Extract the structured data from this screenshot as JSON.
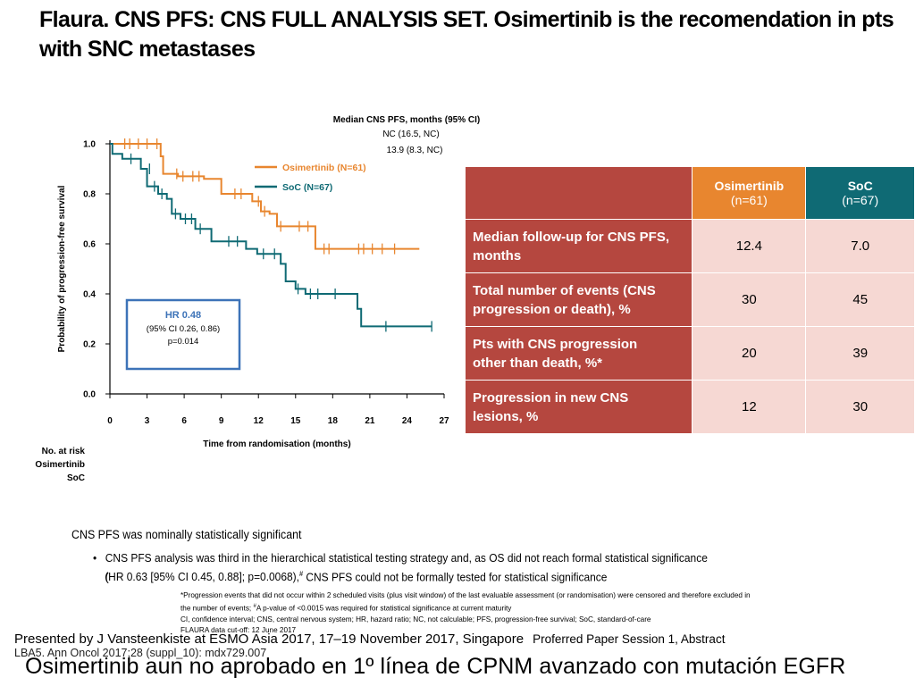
{
  "title": "Flaura. CNS PFS: CNS FULL ANALYSIS SET. Osimertinib is the recomendation in pts with SNC metastases",
  "chart_data": {
    "type": "line",
    "subtype": "kaplan-meier",
    "xlabel": "Time from randomisation (months)",
    "ylabel": "Probability of progression-free survival",
    "xlim": [
      0,
      27
    ],
    "ylim": [
      0,
      1.0
    ],
    "x_ticks": [
      "0",
      "3",
      "6",
      "9",
      "12",
      "15",
      "18",
      "21",
      "24",
      "27"
    ],
    "y_ticks": [
      "1.0",
      "0.8",
      "0.6",
      "0.4",
      "0.2",
      "0.0"
    ],
    "median_header": "Median CNS PFS, months (95% CI)",
    "median_values": [
      "NC (16.5, NC)",
      "13.9 (8.3, NC)"
    ],
    "series": [
      {
        "name": "Osimertinib (N=61)",
        "color": "#e8862f",
        "steps": [
          [
            0,
            1.0
          ],
          [
            4.1,
            0.95
          ],
          [
            4.3,
            0.88
          ],
          [
            5.5,
            0.87
          ],
          [
            7.6,
            0.86
          ],
          [
            9.0,
            0.8
          ],
          [
            11.5,
            0.77
          ],
          [
            12.2,
            0.73
          ],
          [
            12.9,
            0.72
          ],
          [
            13.5,
            0.67
          ],
          [
            16.6,
            0.58
          ],
          [
            25.0,
            0.58
          ]
        ],
        "censors": [
          [
            1.2,
            1.0
          ],
          [
            1.6,
            1.0
          ],
          [
            2.3,
            1.0
          ],
          [
            3.0,
            1.0
          ],
          [
            3.8,
            1.0
          ],
          [
            5.4,
            0.88
          ],
          [
            5.9,
            0.87
          ],
          [
            6.7,
            0.87
          ],
          [
            7.2,
            0.87
          ],
          [
            10.1,
            0.8
          ],
          [
            10.6,
            0.8
          ],
          [
            12.0,
            0.77
          ],
          [
            12.5,
            0.73
          ],
          [
            13.8,
            0.67
          ],
          [
            15.3,
            0.67
          ],
          [
            16.0,
            0.67
          ],
          [
            17.3,
            0.58
          ],
          [
            17.7,
            0.58
          ],
          [
            20.1,
            0.58
          ],
          [
            20.5,
            0.58
          ],
          [
            21.2,
            0.58
          ],
          [
            22.0,
            0.58
          ],
          [
            23.0,
            0.58
          ]
        ]
      },
      {
        "name": "SoC (N=67)",
        "color": "#0f6a74",
        "steps": [
          [
            0,
            1.0
          ],
          [
            0.2,
            0.96
          ],
          [
            1.0,
            0.94
          ],
          [
            2.5,
            0.9
          ],
          [
            3.0,
            0.83
          ],
          [
            3.9,
            0.8
          ],
          [
            4.6,
            0.78
          ],
          [
            5.0,
            0.72
          ],
          [
            5.7,
            0.7
          ],
          [
            6.9,
            0.66
          ],
          [
            8.2,
            0.61
          ],
          [
            11.0,
            0.58
          ],
          [
            11.9,
            0.56
          ],
          [
            13.8,
            0.52
          ],
          [
            14.2,
            0.45
          ],
          [
            15.0,
            0.42
          ],
          [
            15.8,
            0.4
          ],
          [
            19.8,
            0.4
          ],
          [
            20.0,
            0.34
          ],
          [
            20.3,
            0.27
          ],
          [
            26.0,
            0.27
          ]
        ],
        "censors": [
          [
            1.7,
            0.94
          ],
          [
            3.2,
            0.9
          ],
          [
            3.6,
            0.83
          ],
          [
            4.2,
            0.8
          ],
          [
            5.3,
            0.72
          ],
          [
            6.1,
            0.7
          ],
          [
            6.6,
            0.7
          ],
          [
            7.3,
            0.66
          ],
          [
            9.6,
            0.61
          ],
          [
            10.3,
            0.61
          ],
          [
            12.4,
            0.56
          ],
          [
            13.3,
            0.56
          ],
          [
            15.2,
            0.42
          ],
          [
            16.2,
            0.4
          ],
          [
            16.8,
            0.4
          ],
          [
            18.2,
            0.4
          ],
          [
            22.3,
            0.27
          ],
          [
            26.0,
            0.27
          ]
        ]
      }
    ],
    "hr_box": {
      "hr": "HR 0.48",
      "ci": "(95% CI 0.26, 0.86)",
      "p": "p=0.014"
    },
    "risk_header": "No. at risk",
    "risk_rows": [
      "Osimertinib",
      "SoC"
    ]
  },
  "table": {
    "headers": [
      {
        "line1": "Osimertinib",
        "line2": "(n=61)"
      },
      {
        "line1": "SoC",
        "line2": "(n=67)"
      }
    ],
    "rows": [
      {
        "label1": "Median follow-up for CNS PFS,",
        "label2": "months",
        "v1": "12.4",
        "v2": "7.0"
      },
      {
        "label1": "Total number of events (CNS",
        "label2": "progression or death), %",
        "v1": "30",
        "v2": "45"
      },
      {
        "label1": "Pts with CNS progression",
        "label2": "other than death, %*",
        "v1": "20",
        "v2": "39"
      },
      {
        "label1": "Progression in new CNS",
        "label2": "lesions, %",
        "v1": "12",
        "v2": "30"
      }
    ]
  },
  "notes": {
    "line1": "CNS PFS was nominally statistically significant",
    "bullet": "•",
    "bullet_l1": "CNS PFS analysis was third in the hierarchical statistical testing strategy and, as OS did not reach formal statistical significance",
    "bullet_l2": "(HR 0.63 [95% CI 0.45, 0.88]; p=0.0068),",
    "bullet_sup": "#",
    "bullet_l2b": " CNS PFS could not be formally tested for statistical significance",
    "foot1": "*Progression events that did not occur within 2 scheduled visits (plus visit window) of the last evaluable assessment (or randomisation) were censored and therefore excluded in",
    "foot2a": "the number of events; ",
    "foot2sup": "#",
    "foot2b": "A p-value of <0.0015 was required for statistical significance at current maturity",
    "foot3": "CI, confidence interval; CNS, central nervous system; HR, hazard ratio; NC, not calculable; PFS, progression-free survival; SoC, standard-of-care",
    "foot4": "FLAURA data cut-off: 12 June 2017"
  },
  "presented": "Presented by J Vansteenkiste at ESMO Asia 2017, 17–19 November 2017, Singapore",
  "presented_small": "Proferred Paper Session 1, Abstract",
  "reference": "LBA5. Ann Oncol 2017;28 (suppl_10): mdx729.007",
  "bottom_text": "Osimertinib aun no aprobado en 1º línea de CPNM avanzado con mutación EGFR"
}
